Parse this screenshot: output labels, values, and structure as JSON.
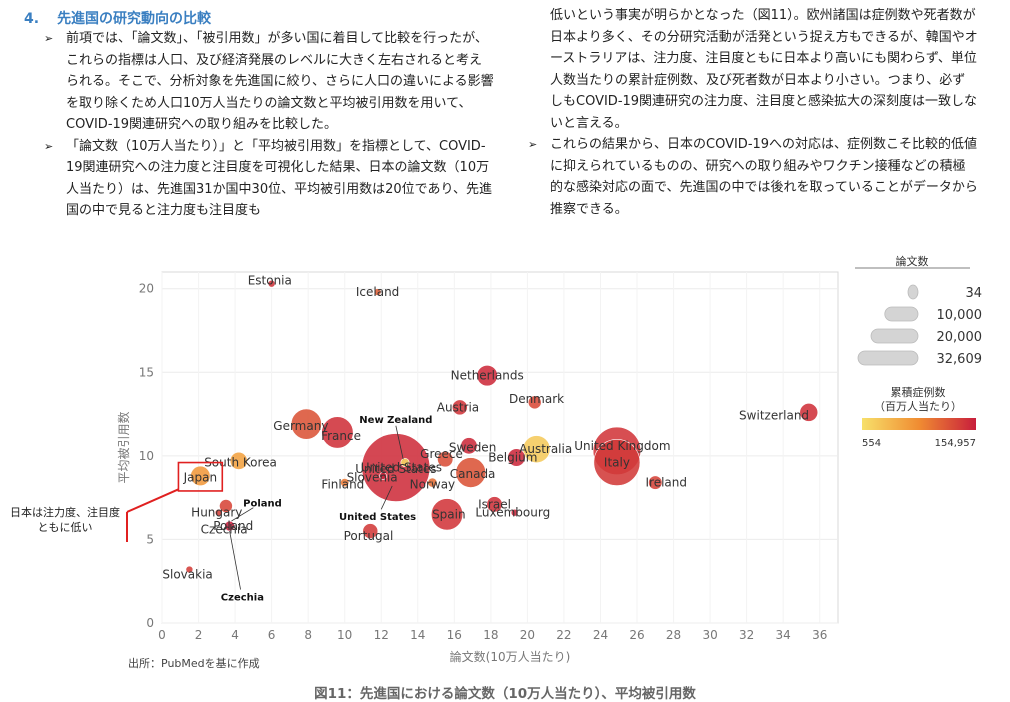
{
  "section": {
    "number": "4.",
    "title": "先進国の研究動向の比較"
  },
  "left_column": [
    "前項では、「論文数」、「被引用数」が多い国に着目して比較を行ったが、これらの指標は人口、及び経済発展のレベルに大きく左右されると考えられる。そこで、分析対象を先進国に絞り、さらに人口の違いによる影響を取り除くため人口10万人当たりの論文数と平均被引用数を用いて、COVID-19関連研究への取り組みを比較した。",
    "「論文数（10万人当たり）」と「平均被引用数」を指標として、COVID-19関連研究への注力度と注目度を可視化した結果、日本の論文数（10万人当たり）は、先進国31か国中30位、平均被引用数は20位であり、先進国の中で見ると注力度も注目度も"
  ],
  "right_column": {
    "continuation": "低いという事実が明らかとなった（図11）。欧州諸国は症例数や死者数が日本より多く、その分研究活動が活発という捉え方もできるが、韓国やオーストラリアは、注力度、注目度ともに日本より高いにも関わらず、単位人数当たりの累計症例数、及び死者数が日本より小さい。つまり、必ずしもCOVID-19関連研究の注力度、注目度と感染拡大の深刻度は一致しないと言える。",
    "bullet": "これらの結果から、日本のCOVID-19への対応は、症例数こそ比較的低値に抑えられているものの、研究への取り組みやワクチン接種などの積極的な感染対応の面で、先進国の中では後れを取っていることがデータから推察できる。"
  },
  "bullet_marker": "➢",
  "chart_data": {
    "type": "scatter",
    "xlabel": "論文数(10万人当たり)",
    "ylabel": "平均被引用数",
    "xlim": [
      0,
      37
    ],
    "ylim": [
      0,
      21
    ],
    "xticks": [
      0,
      2,
      4,
      6,
      8,
      10,
      12,
      14,
      16,
      18,
      20,
      22,
      24,
      26,
      28,
      30,
      32,
      34,
      36
    ],
    "yticks": [
      0,
      5,
      10,
      15,
      20
    ],
    "grid": true,
    "size_legend": {
      "title": "論文数",
      "entries": [
        "34",
        "10,000",
        "20,000",
        "32,609"
      ]
    },
    "color_legend": {
      "title": "累積症例数\n（百万人当たり）",
      "min_label": "554",
      "max_label": "154,957",
      "colors": [
        "#f7e06a",
        "#c81e3c"
      ]
    },
    "points": [
      {
        "name": "Estonia",
        "x": 6.0,
        "y": 20.3,
        "papers": 300,
        "cases": 90000
      },
      {
        "name": "Iceland",
        "x": 11.8,
        "y": 19.8,
        "papers": 150,
        "cases": 30000
      },
      {
        "name": "Netherlands",
        "x": 17.8,
        "y": 14.8,
        "papers": 3000,
        "cases": 110000
      },
      {
        "name": "Denmark",
        "x": 20.4,
        "y": 13.2,
        "papers": 1200,
        "cases": 50000
      },
      {
        "name": "Austria",
        "x": 16.3,
        "y": 12.9,
        "papers": 1600,
        "cases": 85000
      },
      {
        "name": "Switzerland",
        "x": 35.4,
        "y": 12.6,
        "papers": 2300,
        "cases": 95000
      },
      {
        "name": "Germany",
        "x": 7.9,
        "y": 11.9,
        "papers": 6500,
        "cases": 40000
      },
      {
        "name": "France",
        "x": 9.6,
        "y": 11.4,
        "papers": 7000,
        "cases": 95000
      },
      {
        "name": "New Zealand",
        "x": 13.3,
        "y": 9.6,
        "papers": 500,
        "cases": 700
      },
      {
        "name": "Sweden",
        "x": 16.8,
        "y": 10.6,
        "papers": 1900,
        "cases": 115000
      },
      {
        "name": "Greece",
        "x": 15.5,
        "y": 9.8,
        "papers": 1700,
        "cases": 45000
      },
      {
        "name": "Australia",
        "x": 20.5,
        "y": 10.4,
        "papers": 5200,
        "cases": 1200
      },
      {
        "name": "United Kingdom",
        "x": 24.9,
        "y": 10.3,
        "papers": 16000,
        "cases": 85000
      },
      {
        "name": "Belgium",
        "x": 19.4,
        "y": 9.9,
        "papers": 2200,
        "cases": 120000
      },
      {
        "name": "Italy",
        "x": 24.9,
        "y": 9.6,
        "papers": 15000,
        "cases": 75000
      },
      {
        "name": "United States",
        "x": 12.8,
        "y": 9.3,
        "papers": 32609,
        "cases": 105000
      },
      {
        "name": "Canada",
        "x": 16.9,
        "y": 9.0,
        "papers": 6300,
        "cases": 40000
      },
      {
        "name": "South Korea",
        "x": 4.2,
        "y": 9.7,
        "papers": 2100,
        "cases": 4500
      },
      {
        "name": "Slovenia",
        "x": 12.1,
        "y": 8.8,
        "papers": 250,
        "cases": 130000
      },
      {
        "name": "Japan",
        "x": 2.1,
        "y": 8.8,
        "papers": 2700,
        "cases": 6000
      },
      {
        "name": "Finland",
        "x": 10.0,
        "y": 8.4,
        "papers": 500,
        "cases": 15000
      },
      {
        "name": "Norway",
        "x": 14.8,
        "y": 8.4,
        "papers": 600,
        "cases": 20000
      },
      {
        "name": "Ireland",
        "x": 27.0,
        "y": 8.4,
        "papers": 1300,
        "cases": 60000
      },
      {
        "name": "Israel",
        "x": 18.2,
        "y": 7.1,
        "papers": 1700,
        "cases": 95000
      },
      {
        "name": "Poland",
        "x": 3.5,
        "y": 7.0,
        "papers": 1200,
        "cases": 55000
      },
      {
        "name": "Luxembourg",
        "x": 19.3,
        "y": 6.6,
        "papers": 120,
        "cases": 125000
      },
      {
        "name": "Hungary",
        "x": 3.1,
        "y": 6.6,
        "papers": 300,
        "cases": 65000
      },
      {
        "name": "Spain",
        "x": 15.6,
        "y": 6.5,
        "papers": 7000,
        "cases": 85000
      },
      {
        "name": "Czechia",
        "x": 3.7,
        "y": 5.8,
        "papers": 700,
        "cases": 154957
      },
      {
        "name": "Portugal",
        "x": 11.4,
        "y": 5.5,
        "papers": 1600,
        "cases": 75000
      },
      {
        "name": "Slovakia",
        "x": 1.5,
        "y": 3.2,
        "papers": 150,
        "cases": 70000
      }
    ],
    "labels": [
      {
        "name": "Estonia",
        "lx": 5.9,
        "ly": 20.5,
        "anchor": "middle",
        "size": 11
      },
      {
        "name": "Iceland",
        "lx": 11.8,
        "ly": 19.8,
        "anchor": "middle",
        "size": 11
      },
      {
        "name": "Netherlands",
        "lx": 17.8,
        "ly": 14.8,
        "anchor": "middle",
        "size": 11
      },
      {
        "name": "Denmark",
        "lx": 20.5,
        "ly": 13.4,
        "anchor": "middle",
        "size": 11
      },
      {
        "name": "Austria",
        "lx": 16.2,
        "ly": 12.9,
        "anchor": "middle",
        "size": 11
      },
      {
        "name": "Switzerland",
        "lx": 33.5,
        "ly": 12.4,
        "anchor": "middle",
        "size": 11
      },
      {
        "name": "Germany",
        "lx": 7.6,
        "ly": 11.8,
        "anchor": "middle",
        "size": 11
      },
      {
        "name": "France",
        "lx": 9.8,
        "ly": 11.2,
        "anchor": "middle",
        "size": 11
      },
      {
        "name": "New Zealand",
        "lx": 12.8,
        "ly": 12.2,
        "anchor": "middle",
        "size": 9
      },
      {
        "name": "Sweden",
        "lx": 17.0,
        "ly": 10.5,
        "anchor": "middle",
        "size": 11
      },
      {
        "name": "Greece",
        "lx": 15.3,
        "ly": 10.1,
        "anchor": "middle",
        "size": 11
      },
      {
        "name": "Australia",
        "lx": 21.0,
        "ly": 10.4,
        "anchor": "middle",
        "size": 11
      },
      {
        "name": "United Kingdom",
        "lx": 25.2,
        "ly": 10.6,
        "anchor": "middle",
        "size": 11
      },
      {
        "name": "Belgium",
        "lx": 19.2,
        "ly": 9.9,
        "anchor": "middle",
        "size": 11
      },
      {
        "name": "Italy",
        "lx": 24.9,
        "ly": 9.6,
        "anchor": "middle",
        "size": 11
      },
      {
        "name": "United States",
        "lx": 13.1,
        "ly": 9.3,
        "anchor": "middle",
        "size": 11
      },
      {
        "name": "Canada",
        "lx": 17.0,
        "ly": 8.9,
        "anchor": "middle",
        "size": 11
      },
      {
        "name": "South Korea",
        "lx": 4.3,
        "ly": 9.6,
        "anchor": "middle",
        "size": 11
      },
      {
        "name": "Slovenia",
        "lx": 11.5,
        "ly": 8.7,
        "anchor": "middle",
        "size": 11
      },
      {
        "name": "Japan",
        "lx": 2.1,
        "ly": 8.7,
        "anchor": "middle",
        "size": 11
      },
      {
        "name": "Finland",
        "lx": 9.9,
        "ly": 8.3,
        "anchor": "middle",
        "size": 11
      },
      {
        "name": "Norway",
        "lx": 14.8,
        "ly": 8.3,
        "anchor": "middle",
        "size": 11
      },
      {
        "name": "Ireland",
        "lx": 27.6,
        "ly": 8.4,
        "anchor": "middle",
        "size": 11
      },
      {
        "name": "Israel",
        "lx": 18.2,
        "ly": 7.1,
        "anchor": "middle",
        "size": 11
      },
      {
        "name": "Poland",
        "lx": 5.5,
        "ly": 7.2,
        "anchor": "middle",
        "size": 9
      },
      {
        "name": "Luxembourg",
        "lx": 19.2,
        "ly": 6.6,
        "anchor": "middle",
        "size": 11
      },
      {
        "name": "Hungary",
        "lx": 3.0,
        "ly": 6.6,
        "anchor": "middle",
        "size": 11
      },
      {
        "name": "Spain",
        "lx": 15.7,
        "ly": 6.5,
        "anchor": "middle",
        "size": 11
      },
      {
        "name": "Czechia",
        "lx": 3.4,
        "ly": 5.6,
        "anchor": "middle",
        "size": 11
      },
      {
        "name": "Czechia",
        "lx": 4.4,
        "ly": 1.6,
        "anchor": "middle",
        "size": 9
      },
      {
        "name": "Portugal",
        "lx": 11.3,
        "ly": 5.2,
        "anchor": "middle",
        "size": 11
      },
      {
        "name": "Slovakia",
        "lx": 1.4,
        "ly": 2.9,
        "anchor": "middle",
        "size": 11
      },
      {
        "name": "Poland",
        "lx": 3.9,
        "ly": 5.8,
        "anchor": "middle",
        "size": 11
      },
      {
        "name": "United States",
        "lx": 11.8,
        "ly": 6.4,
        "anchor": "middle",
        "size": 9
      },
      {
        "name": "United States",
        "lx": 12.8,
        "ly": 9.2,
        "anchor": "middle",
        "size": 11
      }
    ],
    "annotation": "日本は注力度、注目度ともに低い",
    "source": "出所：PubMedを基に作成"
  },
  "figure_caption": "図11：先進国における論文数（10万人当たり）、平均被引用数"
}
